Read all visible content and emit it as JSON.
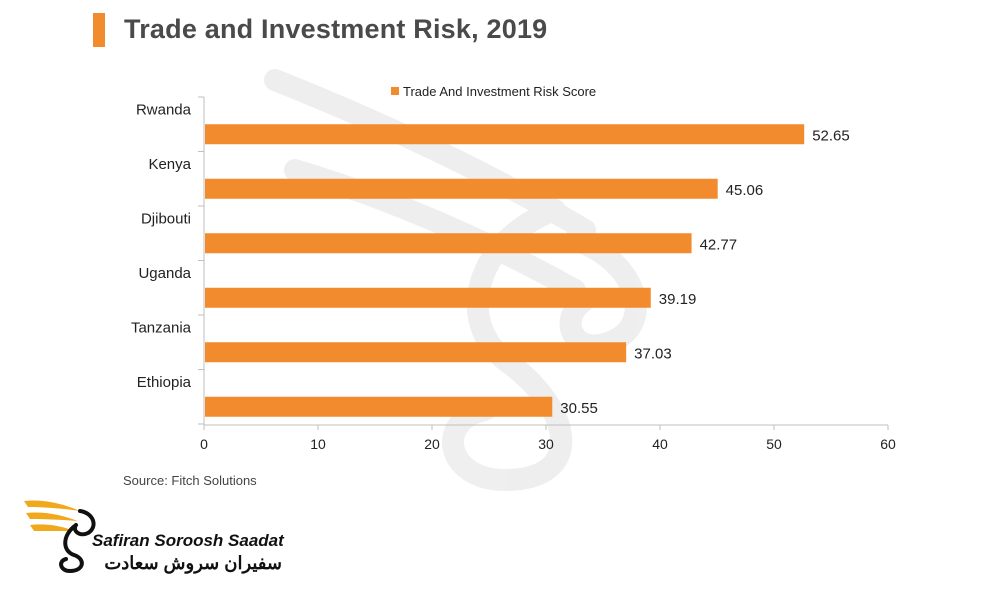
{
  "title": "Trade and Investment Risk, 2019",
  "source": "Source: Fitch Solutions",
  "brand": {
    "name_en": "Safiran Soroosh Saadat",
    "name_fa": "سفیران سروش سعادت"
  },
  "colors": {
    "bar": "#f28a2e",
    "accent": "#f28a2e",
    "logo": "#f0a81c"
  },
  "chart_data": {
    "type": "bar",
    "orientation": "horizontal",
    "title": "Trade and Investment Risk, 2019",
    "categories": [
      "Rwanda",
      "Kenya",
      "Djibouti",
      "Uganda",
      "Tanzania",
      "Ethiopia"
    ],
    "series": [
      {
        "name": "Trade And Investment Risk Score",
        "values": [
          52.65,
          45.06,
          42.77,
          39.19,
          37.03,
          30.55
        ]
      }
    ],
    "value_labels": [
      "52.65",
      "45.06",
      "42.77",
      "39.19",
      "37.03",
      "30.55"
    ],
    "xlim": [
      0,
      60
    ],
    "xticks": [
      0,
      10,
      20,
      30,
      40,
      50,
      60
    ],
    "xlabel": "",
    "ylabel": "",
    "legend": "top-center",
    "grid": false
  }
}
